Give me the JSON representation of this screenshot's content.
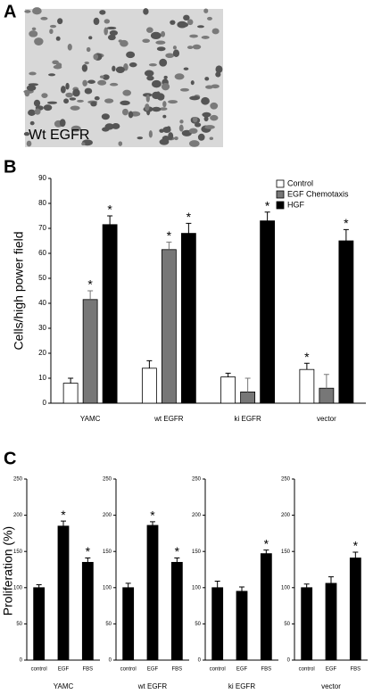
{
  "panel_labels": [
    "A",
    "B",
    "C"
  ],
  "image": {
    "caption": "Wt EGFR"
  },
  "chart_data": [
    {
      "type": "bar",
      "ylabel": "Cells/high power field",
      "categories": [
        "YAMC",
        "wt EGFR",
        "ki EGFR",
        "vector"
      ],
      "ylim": [
        0,
        90
      ],
      "yticks": [
        0,
        10,
        20,
        30,
        40,
        50,
        60,
        70,
        80,
        90
      ],
      "legend": "top-right",
      "series": [
        {
          "name": "Control",
          "color": "#ffffff",
          "values": [
            8,
            14,
            10.5,
            13.5
          ],
          "errors": [
            2,
            3,
            1.5,
            2.5
          ],
          "significance": [
            null,
            null,
            null,
            "*"
          ]
        },
        {
          "name": "EGF Chemotaxis",
          "color": "#777777",
          "values": [
            41.5,
            61.5,
            4.5,
            6
          ],
          "errors": [
            3.5,
            3,
            5.5,
            5.5
          ],
          "significance": [
            "*",
            "*",
            null,
            null
          ]
        },
        {
          "name": "HGF",
          "color": "#000000",
          "values": [
            71.5,
            68,
            73,
            65
          ],
          "errors": [
            3.5,
            4,
            3.5,
            4.5
          ],
          "significance": [
            "*",
            "*",
            "*",
            "*"
          ]
        }
      ]
    },
    {
      "type": "bar",
      "ylabel": "Proliferation (%)",
      "xlabel": "YAMC",
      "categories": [
        "control",
        "EGF",
        "FBS"
      ],
      "values": [
        100,
        185,
        135
      ],
      "errors": [
        4,
        7,
        6
      ],
      "significance": [
        null,
        "*",
        "*"
      ],
      "color": "#000000",
      "ylim": [
        0,
        250
      ],
      "yticks": [
        0,
        50,
        100,
        150,
        200,
        250
      ]
    },
    {
      "type": "bar",
      "xlabel": "wt EGFR",
      "categories": [
        "control",
        "EGF",
        "FBS"
      ],
      "values": [
        100,
        186,
        135
      ],
      "errors": [
        6,
        5,
        6
      ],
      "significance": [
        null,
        "*",
        "*"
      ],
      "color": "#000000",
      "ylim": [
        0,
        250
      ],
      "yticks": [
        0,
        50,
        100,
        150,
        200,
        250
      ]
    },
    {
      "type": "bar",
      "xlabel": "ki EGFR",
      "categories": [
        "control",
        "EGF",
        "FBS"
      ],
      "values": [
        100,
        95,
        147
      ],
      "errors": [
        9,
        6,
        5
      ],
      "significance": [
        null,
        null,
        "*"
      ],
      "color": "#000000",
      "ylim": [
        0,
        250
      ],
      "yticks": [
        0,
        50,
        100,
        150,
        200,
        250
      ]
    },
    {
      "type": "bar",
      "xlabel": "vector",
      "categories": [
        "control",
        "EGF",
        "FBS"
      ],
      "values": [
        100,
        106,
        141
      ],
      "errors": [
        5,
        9,
        8
      ],
      "significance": [
        null,
        null,
        "*"
      ],
      "color": "#000000",
      "ylim": [
        0,
        250
      ],
      "yticks": [
        0,
        50,
        100,
        150,
        200,
        250
      ]
    }
  ]
}
